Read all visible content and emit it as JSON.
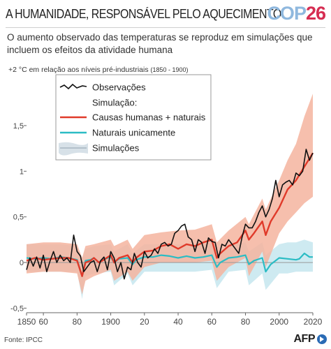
{
  "header": {
    "title": "A HUMANIDADE, RESPONSÁVEL PELO AQUECIMENTO",
    "logo_cop": "COP",
    "logo_number": "26"
  },
  "subtitle": "O aumento observado das temperaturas se reproduz em simulações que incluem os efeitos da atividade humana",
  "unit_note": {
    "main": "+2 °C em relação aos níveis pré-industriais",
    "period": "(1850 - 1900)"
  },
  "footer": {
    "source": "Fonte: IPCC",
    "agency": "AFP"
  },
  "colors": {
    "observations": "#111111",
    "human_natural_line": "#e03a2a",
    "human_natural_band": "#f4b49f",
    "natural_line": "#2bbcc4",
    "natural_band": "#c6e6ef",
    "simulations_legend_band": "#d7e1e8",
    "simulations_legend_line": "#a7b5bf",
    "zero_line": "#999999",
    "tick_text": "#444444",
    "grid": "#e6e6e6",
    "logo_blue": "#8fb8de",
    "logo_red": "#d62d52"
  },
  "chart_data": {
    "type": "line",
    "title": "",
    "xlabel": "",
    "ylabel": "+2 °C em relação aos níveis pré-industriais (1850 - 1900)",
    "xlim": [
      1850,
      2020
    ],
    "ylim": [
      -0.55,
      2.05
    ],
    "x_ticks": [
      1850,
      1860,
      1880,
      1900,
      1920,
      1940,
      1960,
      1980,
      2000,
      2020
    ],
    "x_tick_labels": [
      "1850",
      "60",
      "80",
      "1900",
      "20",
      "40",
      "60",
      "80",
      "2000",
      "2020"
    ],
    "y_ticks": [
      -0.5,
      0,
      0.5,
      1,
      1.5
    ],
    "y_tick_labels": [
      "-0,5",
      "0",
      "0,5",
      "1",
      "1,5"
    ],
    "legend": {
      "placement": "top-left",
      "items": [
        {
          "key": "observations",
          "label": "Observações"
        },
        {
          "key": "header",
          "label": "Simulação:"
        },
        {
          "key": "human_natural",
          "label": "Causas humanas + naturais"
        },
        {
          "key": "natural",
          "label": "Naturais unicamente"
        },
        {
          "key": "simulations",
          "label": "Simulações"
        }
      ]
    },
    "series": [
      {
        "name": "Observações",
        "key": "observations",
        "x": [
          1850,
          1852,
          1854,
          1856,
          1858,
          1860,
          1862,
          1864,
          1866,
          1868,
          1870,
          1872,
          1874,
          1876,
          1878,
          1880,
          1882,
          1884,
          1886,
          1888,
          1890,
          1892,
          1894,
          1896,
          1898,
          1900,
          1902,
          1904,
          1906,
          1908,
          1910,
          1912,
          1914,
          1916,
          1918,
          1920,
          1922,
          1924,
          1926,
          1928,
          1930,
          1932,
          1934,
          1936,
          1938,
          1940,
          1942,
          1944,
          1946,
          1948,
          1950,
          1952,
          1954,
          1956,
          1958,
          1960,
          1962,
          1964,
          1966,
          1968,
          1970,
          1972,
          1974,
          1976,
          1978,
          1980,
          1982,
          1984,
          1986,
          1988,
          1990,
          1992,
          1994,
          1996,
          1998,
          2000,
          2002,
          2004,
          2006,
          2008,
          2010,
          2012,
          2014,
          2016,
          2018,
          2020
        ],
        "y": [
          -0.08,
          0.05,
          -0.04,
          0.06,
          -0.06,
          0.08,
          -0.1,
          0.02,
          0.12,
          0.0,
          0.08,
          0.02,
          0.05,
          0.0,
          0.3,
          0.12,
          0.07,
          -0.1,
          -0.05,
          0.0,
          0.02,
          -0.1,
          0.02,
          0.06,
          -0.08,
          0.12,
          0.05,
          -0.1,
          0.0,
          -0.18,
          -0.05,
          -0.08,
          0.1,
          0.0,
          -0.05,
          0.12,
          0.05,
          0.08,
          0.15,
          0.1,
          0.2,
          0.22,
          0.18,
          0.2,
          0.32,
          0.35,
          0.4,
          0.42,
          0.28,
          0.25,
          0.12,
          0.25,
          0.22,
          0.1,
          0.27,
          0.23,
          0.22,
          0.05,
          0.2,
          0.18,
          0.25,
          0.2,
          0.15,
          0.1,
          0.28,
          0.42,
          0.38,
          0.38,
          0.45,
          0.55,
          0.62,
          0.5,
          0.58,
          0.7,
          0.9,
          0.72,
          0.85,
          0.88,
          0.9,
          0.85,
          0.98,
          0.95,
          1.0,
          1.24,
          1.12,
          1.2
        ]
      },
      {
        "name": "Causas humanas + naturais",
        "key": "human_natural",
        "x": [
          1850,
          1855,
          1860,
          1865,
          1870,
          1875,
          1880,
          1883,
          1885,
          1888,
          1890,
          1893,
          1895,
          1900,
          1902,
          1905,
          1910,
          1913,
          1915,
          1920,
          1925,
          1930,
          1935,
          1940,
          1945,
          1950,
          1955,
          1960,
          1963,
          1965,
          1970,
          1975,
          1980,
          1982,
          1985,
          1990,
          1992,
          1995,
          2000,
          2005,
          2010,
          2015,
          2020
        ],
        "y": [
          0.02,
          0.05,
          0.03,
          0.04,
          0.05,
          0.05,
          0.02,
          -0.15,
          0.0,
          0.02,
          0.05,
          0.0,
          0.02,
          0.08,
          0.0,
          0.05,
          0.08,
          0.0,
          0.05,
          0.12,
          0.13,
          0.18,
          0.2,
          0.15,
          0.2,
          0.18,
          0.22,
          0.25,
          0.05,
          0.1,
          0.18,
          0.22,
          0.35,
          0.25,
          0.32,
          0.45,
          0.3,
          0.45,
          0.6,
          0.8,
          0.9,
          1.05,
          1.2
        ]
      },
      {
        "name": "Naturais unicamente",
        "key": "natural",
        "x": [
          1850,
          1855,
          1860,
          1865,
          1870,
          1875,
          1880,
          1883,
          1885,
          1888,
          1890,
          1893,
          1895,
          1900,
          1902,
          1905,
          1910,
          1913,
          1915,
          1920,
          1925,
          1930,
          1935,
          1940,
          1945,
          1950,
          1955,
          1960,
          1963,
          1965,
          1970,
          1975,
          1980,
          1982,
          1985,
          1990,
          1992,
          1995,
          2000,
          2005,
          2010,
          2012,
          2015,
          2018,
          2020
        ],
        "y": [
          0.05,
          0.04,
          0.05,
          0.04,
          0.06,
          0.05,
          0.03,
          -0.15,
          0.02,
          0.03,
          0.05,
          0.0,
          0.03,
          0.06,
          0.0,
          0.04,
          0.05,
          -0.02,
          0.03,
          0.06,
          0.06,
          0.08,
          0.07,
          0.05,
          0.07,
          0.05,
          0.06,
          0.08,
          -0.05,
          0.0,
          0.05,
          0.06,
          0.08,
          -0.02,
          0.02,
          0.05,
          -0.1,
          -0.02,
          0.05,
          0.04,
          0.03,
          0.04,
          0.1,
          0.06,
          0.06
        ]
      }
    ],
    "bands": [
      {
        "key": "human_natural_band",
        "x": [
          1850,
          1860,
          1870,
          1880,
          1883,
          1885,
          1890,
          1900,
          1902,
          1910,
          1913,
          1920,
          1930,
          1940,
          1950,
          1960,
          1963,
          1970,
          1980,
          1982,
          1990,
          1992,
          2000,
          2005,
          2010,
          2015,
          2020
        ],
        "lower": [
          -0.12,
          -0.1,
          -0.1,
          -0.12,
          -0.35,
          -0.2,
          -0.15,
          -0.08,
          -0.2,
          -0.1,
          -0.2,
          -0.05,
          0.0,
          0.0,
          0.0,
          0.02,
          -0.2,
          -0.05,
          0.05,
          -0.15,
          0.12,
          -0.05,
          0.32,
          0.45,
          0.55,
          0.65,
          0.72
        ],
        "upper": [
          0.2,
          0.22,
          0.22,
          0.2,
          0.05,
          0.18,
          0.2,
          0.25,
          0.18,
          0.25,
          0.15,
          0.3,
          0.33,
          0.35,
          0.36,
          0.42,
          0.22,
          0.35,
          0.5,
          0.42,
          0.7,
          0.58,
          0.9,
          1.12,
          1.3,
          1.6,
          1.85
        ]
      },
      {
        "key": "natural_band",
        "x": [
          1850,
          1860,
          1870,
          1880,
          1883,
          1885,
          1890,
          1900,
          1902,
          1910,
          1913,
          1920,
          1930,
          1940,
          1950,
          1960,
          1963,
          1970,
          1980,
          1982,
          1990,
          1992,
          2000,
          2005,
          2010,
          2015,
          2020
        ],
        "lower": [
          -0.1,
          -0.1,
          -0.1,
          -0.1,
          -0.4,
          -0.15,
          -0.12,
          -0.1,
          -0.25,
          -0.12,
          -0.25,
          -0.1,
          -0.1,
          -0.1,
          -0.1,
          -0.08,
          -0.28,
          -0.1,
          -0.08,
          -0.25,
          -0.12,
          -0.3,
          -0.12,
          -0.12,
          -0.1,
          -0.1,
          -0.1
        ],
        "upper": [
          0.2,
          0.2,
          0.2,
          0.18,
          0.05,
          0.15,
          0.18,
          0.2,
          0.12,
          0.2,
          0.1,
          0.2,
          0.2,
          0.2,
          0.2,
          0.22,
          0.08,
          0.2,
          0.22,
          0.12,
          0.22,
          0.08,
          0.2,
          0.22,
          0.22,
          0.25,
          0.22
        ]
      }
    ],
    "grid": false,
    "zero_line": true
  }
}
